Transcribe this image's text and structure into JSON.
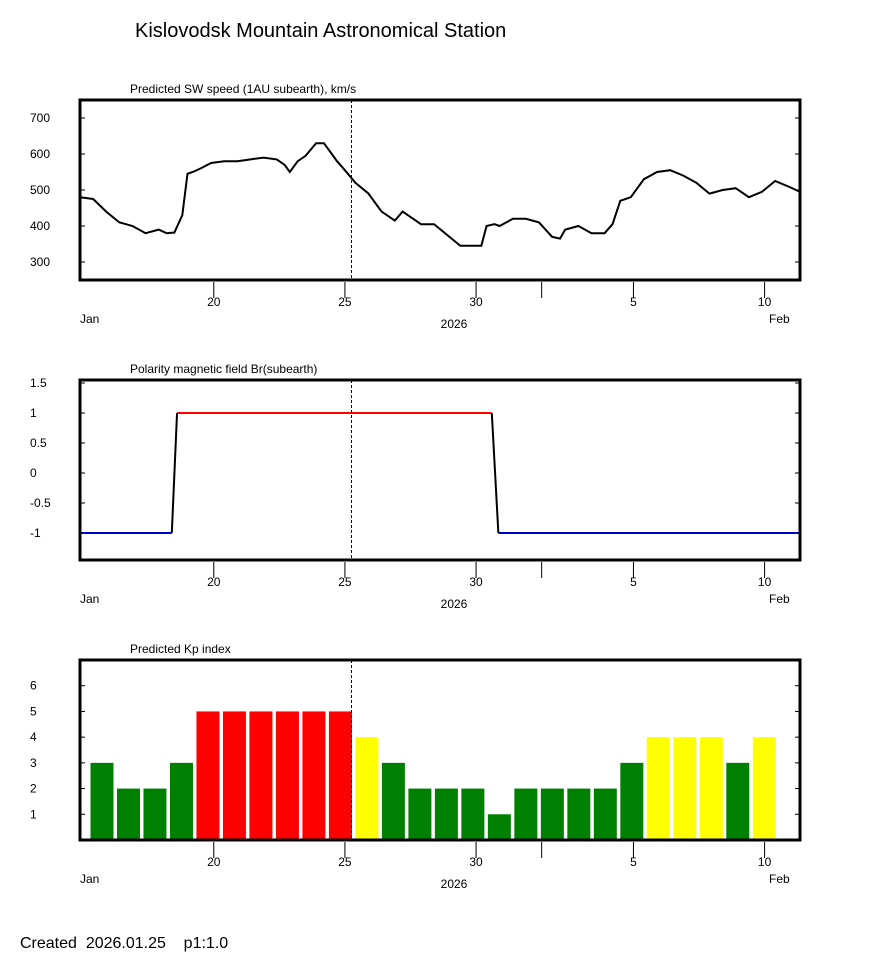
{
  "title": "Kislovodsk Mountain Astronomical Station",
  "footer": {
    "label": "Created",
    "date": "2026.01.25",
    "page": "p1:1.0"
  },
  "colors": {
    "red": "#ff0000",
    "green": "#008000",
    "yellow": "#ffff00",
    "blue": "#0000c8",
    "black": "#000000"
  },
  "x_axis": {
    "start_day": 14.9,
    "end_day": 42.35,
    "ticks": [
      {
        "day": 20,
        "label": "20"
      },
      {
        "day": 25,
        "label": "25"
      },
      {
        "day": 30,
        "label": "30"
      },
      {
        "day": 32.5,
        "label": ""
      },
      {
        "day": 36,
        "label": "5"
      },
      {
        "day": 41,
        "label": "10"
      }
    ],
    "month_left": "Jan",
    "month_right": "Feb",
    "year": "2026",
    "current_day": 25.25
  },
  "chart_data": [
    {
      "type": "line",
      "title": "Predicted SW speed (1AU subearth), km/s",
      "ylim": [
        250,
        750
      ],
      "yticks": [
        300,
        400,
        500,
        600,
        700
      ],
      "x": [
        14.9,
        15.4,
        15.9,
        16.4,
        16.9,
        17.4,
        17.9,
        18.2,
        18.5,
        18.8,
        19.0,
        19.2,
        19.5,
        19.9,
        20.4,
        20.9,
        21.4,
        21.9,
        22.4,
        22.7,
        22.9,
        23.2,
        23.5,
        23.9,
        24.2,
        24.4,
        24.7,
        25.0,
        25.4,
        25.9,
        26.4,
        26.9,
        27.2,
        27.4,
        27.9,
        28.4,
        28.9,
        29.4,
        29.9,
        30.2,
        30.4,
        30.7,
        30.9,
        31.4,
        31.9,
        32.4,
        32.9,
        33.2,
        33.4,
        33.9,
        34.4,
        34.9,
        35.2,
        35.5,
        35.9,
        36.4,
        36.9,
        37.4,
        37.9,
        38.4,
        38.9,
        39.4,
        39.9,
        40.4,
        40.9,
        41.4,
        41.9,
        42.35
      ],
      "y": [
        480,
        475,
        440,
        410,
        400,
        380,
        390,
        380,
        382,
        430,
        545,
        550,
        560,
        575,
        580,
        580,
        585,
        590,
        585,
        570,
        550,
        580,
        595,
        630,
        630,
        610,
        580,
        555,
        520,
        490,
        440,
        415,
        440,
        430,
        405,
        405,
        375,
        345,
        345,
        345,
        400,
        405,
        400,
        420,
        420,
        410,
        370,
        365,
        390,
        400,
        380,
        380,
        405,
        470,
        480,
        530,
        550,
        555,
        540,
        520,
        490,
        500,
        505,
        480,
        495,
        525,
        510,
        495
      ],
      "current_day": 25.25
    },
    {
      "type": "step",
      "title": "Polarity magnetic field  Br(subearth)",
      "ylim": [
        -1.45,
        1.55
      ],
      "yticks": [
        {
          "v": -1,
          "label": "-1"
        },
        {
          "v": -0.5,
          "label": "-0.5"
        },
        {
          "v": 0,
          "label": "0"
        },
        {
          "v": 0.5,
          "label": "0.5"
        },
        {
          "v": 1,
          "label": "1"
        },
        {
          "v": 1.5,
          "label": "1.5"
        }
      ],
      "segments": [
        {
          "from": 14.9,
          "to": 18.4,
          "value": -1,
          "color": "#0000c8"
        },
        {
          "from": 18.6,
          "to": 30.6,
          "value": 1,
          "color": "#ff0000"
        },
        {
          "from": 30.85,
          "to": 42.35,
          "value": -1,
          "color": "#0000c8"
        }
      ],
      "transitions": [
        {
          "from_day": 18.4,
          "to_day": 18.6,
          "from_value": -1,
          "to_value": 1
        },
        {
          "from_day": 30.6,
          "to_day": 30.85,
          "from_value": 1,
          "to_value": -1
        }
      ],
      "current_day": 25.25
    },
    {
      "type": "bar",
      "title": "Predicted Kp index",
      "ylim": [
        0,
        7
      ],
      "yticks": [
        1,
        2,
        3,
        4,
        5,
        6
      ],
      "bar_start_day": 15.3,
      "bar_step": 1.01,
      "values": [
        3,
        2,
        2,
        3,
        5,
        5,
        5,
        5,
        5,
        5,
        4,
        3,
        2,
        2,
        2,
        1,
        2,
        2,
        2,
        2,
        3,
        4,
        4,
        4,
        3,
        4
      ],
      "current_day": 25.25
    }
  ]
}
